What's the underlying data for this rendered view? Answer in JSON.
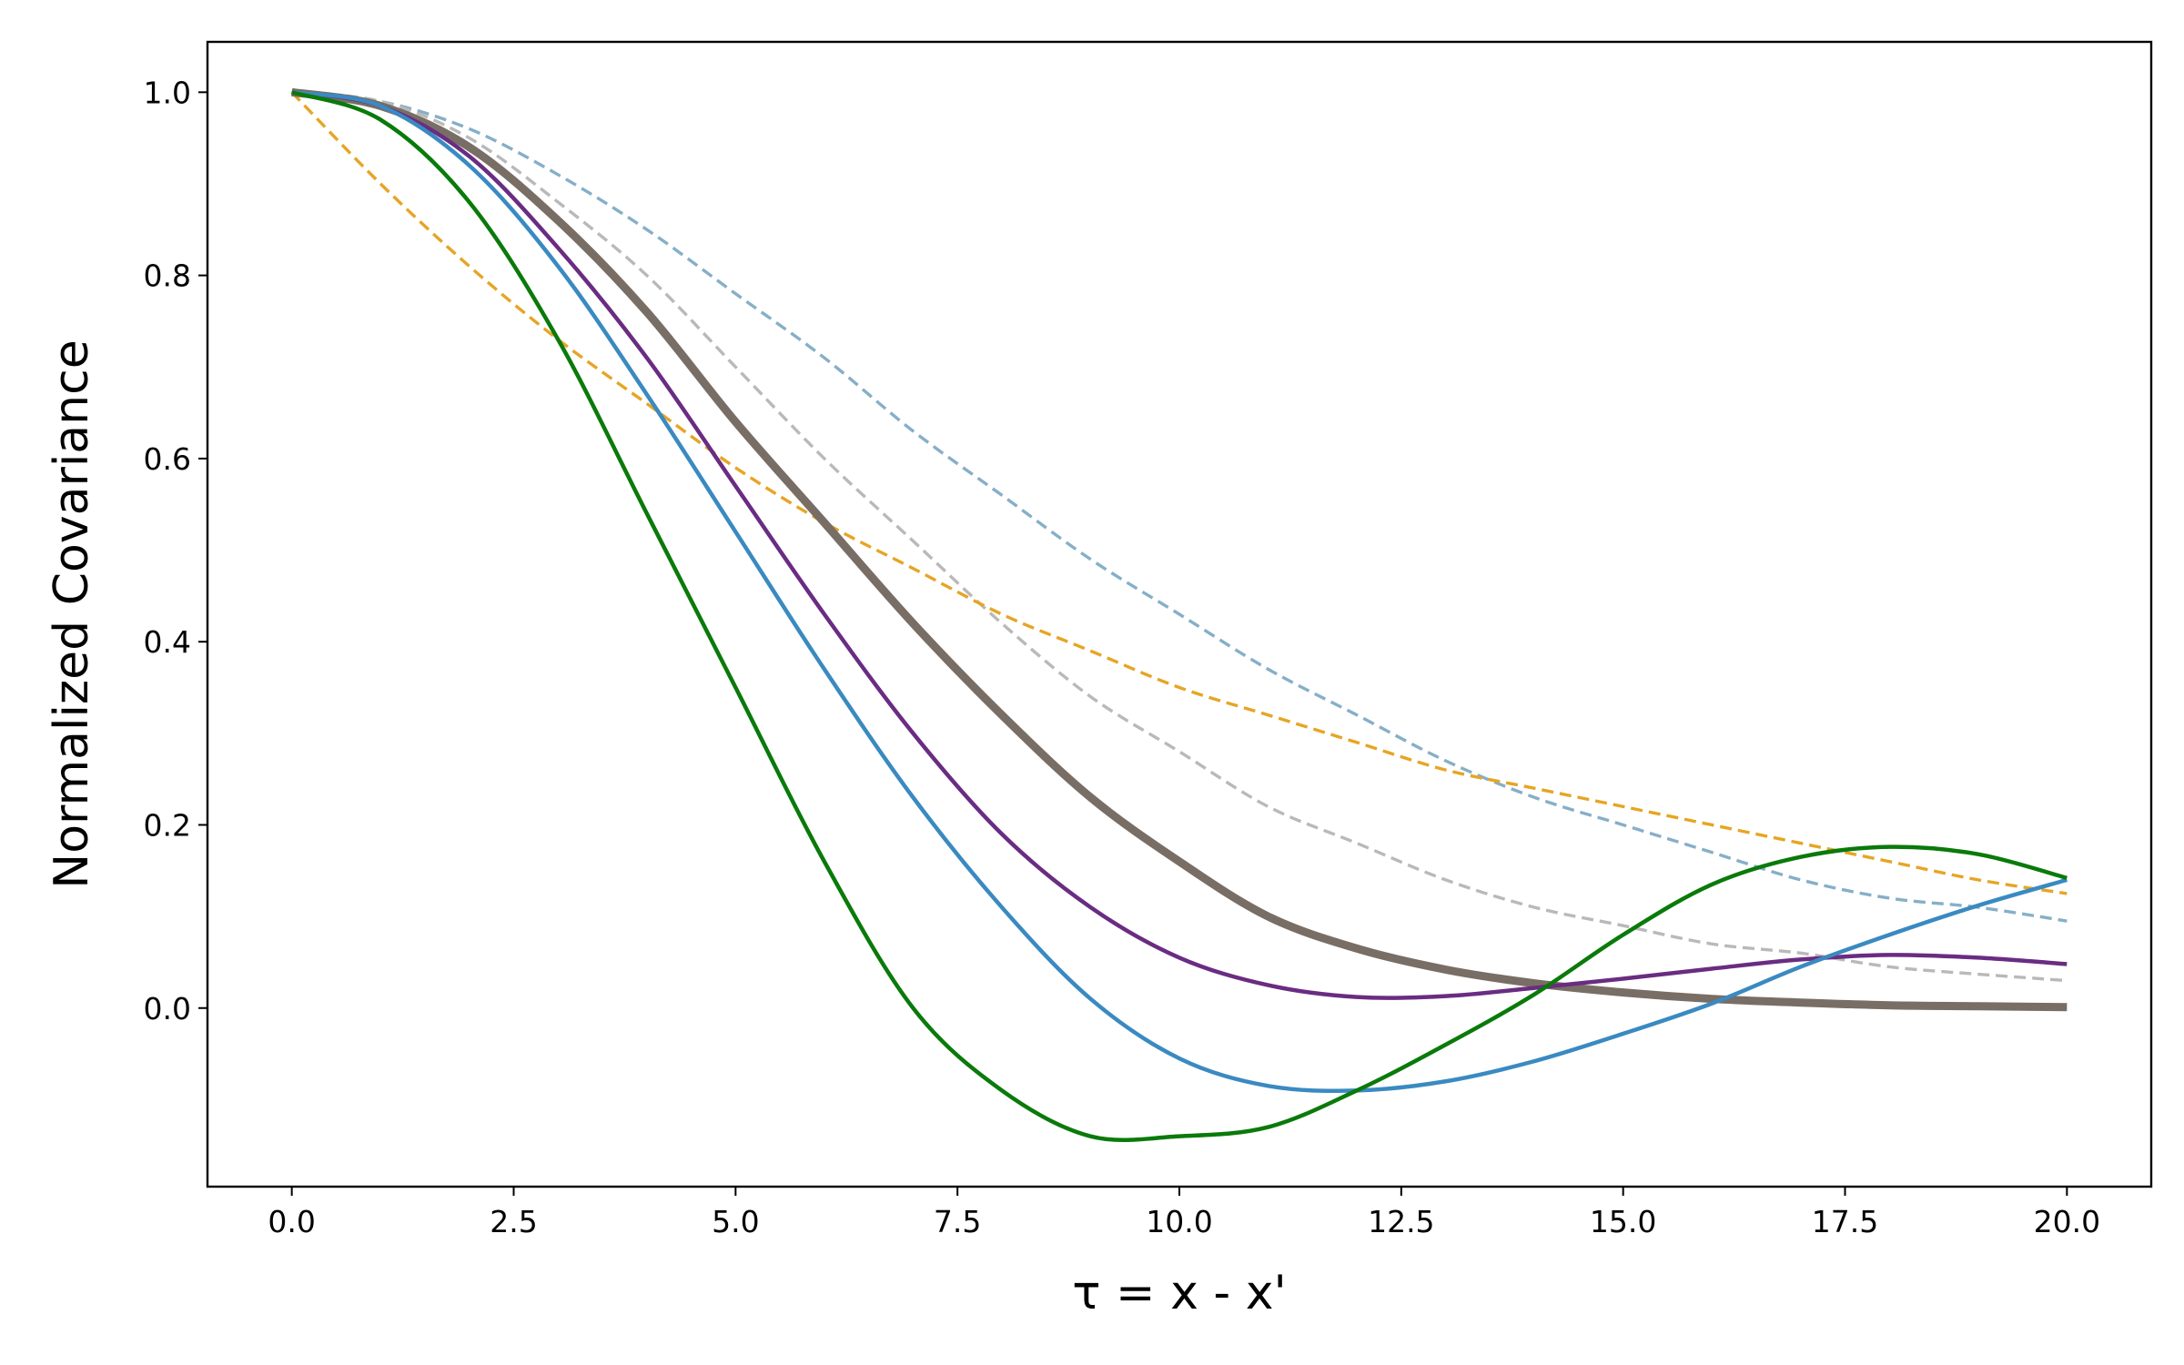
{
  "chart_data": {
    "type": "line",
    "title": "",
    "xlabel": "τ = x - x'",
    "ylabel": "Normalized Covariance",
    "xlim": [
      -0.95,
      20.95
    ],
    "ylim": [
      -0.195,
      1.055
    ],
    "xticks": [
      0.0,
      2.5,
      5.0,
      7.5,
      10.0,
      12.5,
      15.0,
      17.5,
      20.0
    ],
    "xtick_labels": [
      "0.0",
      "2.5",
      "5.0",
      "7.5",
      "10.0",
      "12.5",
      "15.0",
      "17.5",
      "20.0"
    ],
    "yticks": [
      0.0,
      0.2,
      0.4,
      0.6,
      0.8,
      1.0
    ],
    "ytick_labels": [
      "0.0",
      "0.2",
      "0.4",
      "0.6",
      "0.8",
      "1.0"
    ],
    "grid": false,
    "legend": "none",
    "series": [
      {
        "color": "#86AFC8",
        "dash": true,
        "width": 3.4,
        "x": [
          0,
          1,
          2,
          3,
          4,
          5,
          6,
          7,
          8,
          9,
          10,
          11,
          12,
          13,
          14,
          15,
          16,
          17,
          18,
          19,
          20
        ],
        "y": [
          1.0,
          0.99,
          0.96,
          0.91,
          0.85,
          0.78,
          0.71,
          0.63,
          0.56,
          0.49,
          0.43,
          0.37,
          0.32,
          0.27,
          0.23,
          0.2,
          0.17,
          0.14,
          0.12,
          0.11,
          0.095
        ]
      },
      {
        "color": "#B9B9B9",
        "dash": true,
        "width": 3.4,
        "x": [
          0,
          1,
          2,
          3,
          4,
          5,
          6,
          7,
          8,
          9,
          10,
          11,
          12,
          13,
          14,
          15,
          16,
          17,
          18,
          19,
          20
        ],
        "y": [
          1.0,
          0.99,
          0.95,
          0.88,
          0.8,
          0.7,
          0.6,
          0.51,
          0.42,
          0.34,
          0.28,
          0.22,
          0.18,
          0.14,
          0.11,
          0.09,
          0.07,
          0.06,
          0.045,
          0.037,
          0.03
        ]
      },
      {
        "color": "#E6A524",
        "dash": true,
        "width": 3.4,
        "x": [
          0,
          1,
          2,
          3,
          4,
          5,
          6,
          7,
          8,
          9,
          10,
          11,
          12,
          13,
          14,
          15,
          16,
          17,
          18,
          19,
          20
        ],
        "y": [
          1.0,
          0.9,
          0.81,
          0.73,
          0.66,
          0.59,
          0.53,
          0.48,
          0.43,
          0.39,
          0.35,
          0.32,
          0.29,
          0.26,
          0.24,
          0.22,
          0.2,
          0.18,
          0.16,
          0.14,
          0.125
        ]
      },
      {
        "color": "#786E65",
        "dash": false,
        "width": 9,
        "x": [
          0,
          1,
          2,
          3,
          4,
          5,
          6,
          7,
          8,
          9,
          10,
          11,
          12,
          13,
          14,
          15,
          16,
          17,
          18,
          19,
          20
        ],
        "y": [
          1.0,
          0.985,
          0.94,
          0.86,
          0.76,
          0.64,
          0.53,
          0.42,
          0.32,
          0.23,
          0.16,
          0.1,
          0.065,
          0.042,
          0.027,
          0.017,
          0.01,
          0.006,
          0.003,
          0.002,
          0.001
        ]
      },
      {
        "color": "#6A2C82",
        "dash": false,
        "width": 4.5,
        "x": [
          0,
          1,
          2,
          3,
          4,
          5,
          6,
          7,
          8,
          9,
          10,
          11,
          12,
          13,
          14,
          15,
          16,
          17,
          18,
          19,
          20
        ],
        "y": [
          1.0,
          0.985,
          0.93,
          0.83,
          0.71,
          0.57,
          0.43,
          0.3,
          0.19,
          0.11,
          0.055,
          0.025,
          0.012,
          0.013,
          0.022,
          0.032,
          0.043,
          0.053,
          0.058,
          0.055,
          0.048
        ]
      },
      {
        "color": "#3A8AC1",
        "dash": false,
        "width": 4.5,
        "x": [
          0,
          1,
          2,
          3,
          4,
          5,
          6,
          7,
          8,
          9,
          10,
          11,
          12,
          13,
          14,
          15,
          16,
          17,
          18,
          19,
          20
        ],
        "y": [
          1.0,
          0.985,
          0.92,
          0.81,
          0.67,
          0.52,
          0.37,
          0.23,
          0.11,
          0.01,
          -0.055,
          -0.085,
          -0.09,
          -0.08,
          -0.058,
          -0.028,
          0.005,
          0.045,
          0.08,
          0.112,
          0.14
        ]
      },
      {
        "color": "#0A7A0A",
        "dash": false,
        "width": 4.5,
        "x": [
          0,
          1,
          2,
          3,
          4,
          5,
          6,
          7,
          8,
          9,
          10,
          11,
          12,
          13,
          14,
          15,
          16,
          17,
          18,
          19,
          20
        ],
        "y": [
          1.0,
          0.97,
          0.88,
          0.73,
          0.54,
          0.35,
          0.16,
          0.0,
          -0.09,
          -0.14,
          -0.14,
          -0.13,
          -0.09,
          -0.04,
          0.015,
          0.08,
          0.135,
          0.165,
          0.176,
          0.168,
          0.142
        ]
      }
    ]
  }
}
